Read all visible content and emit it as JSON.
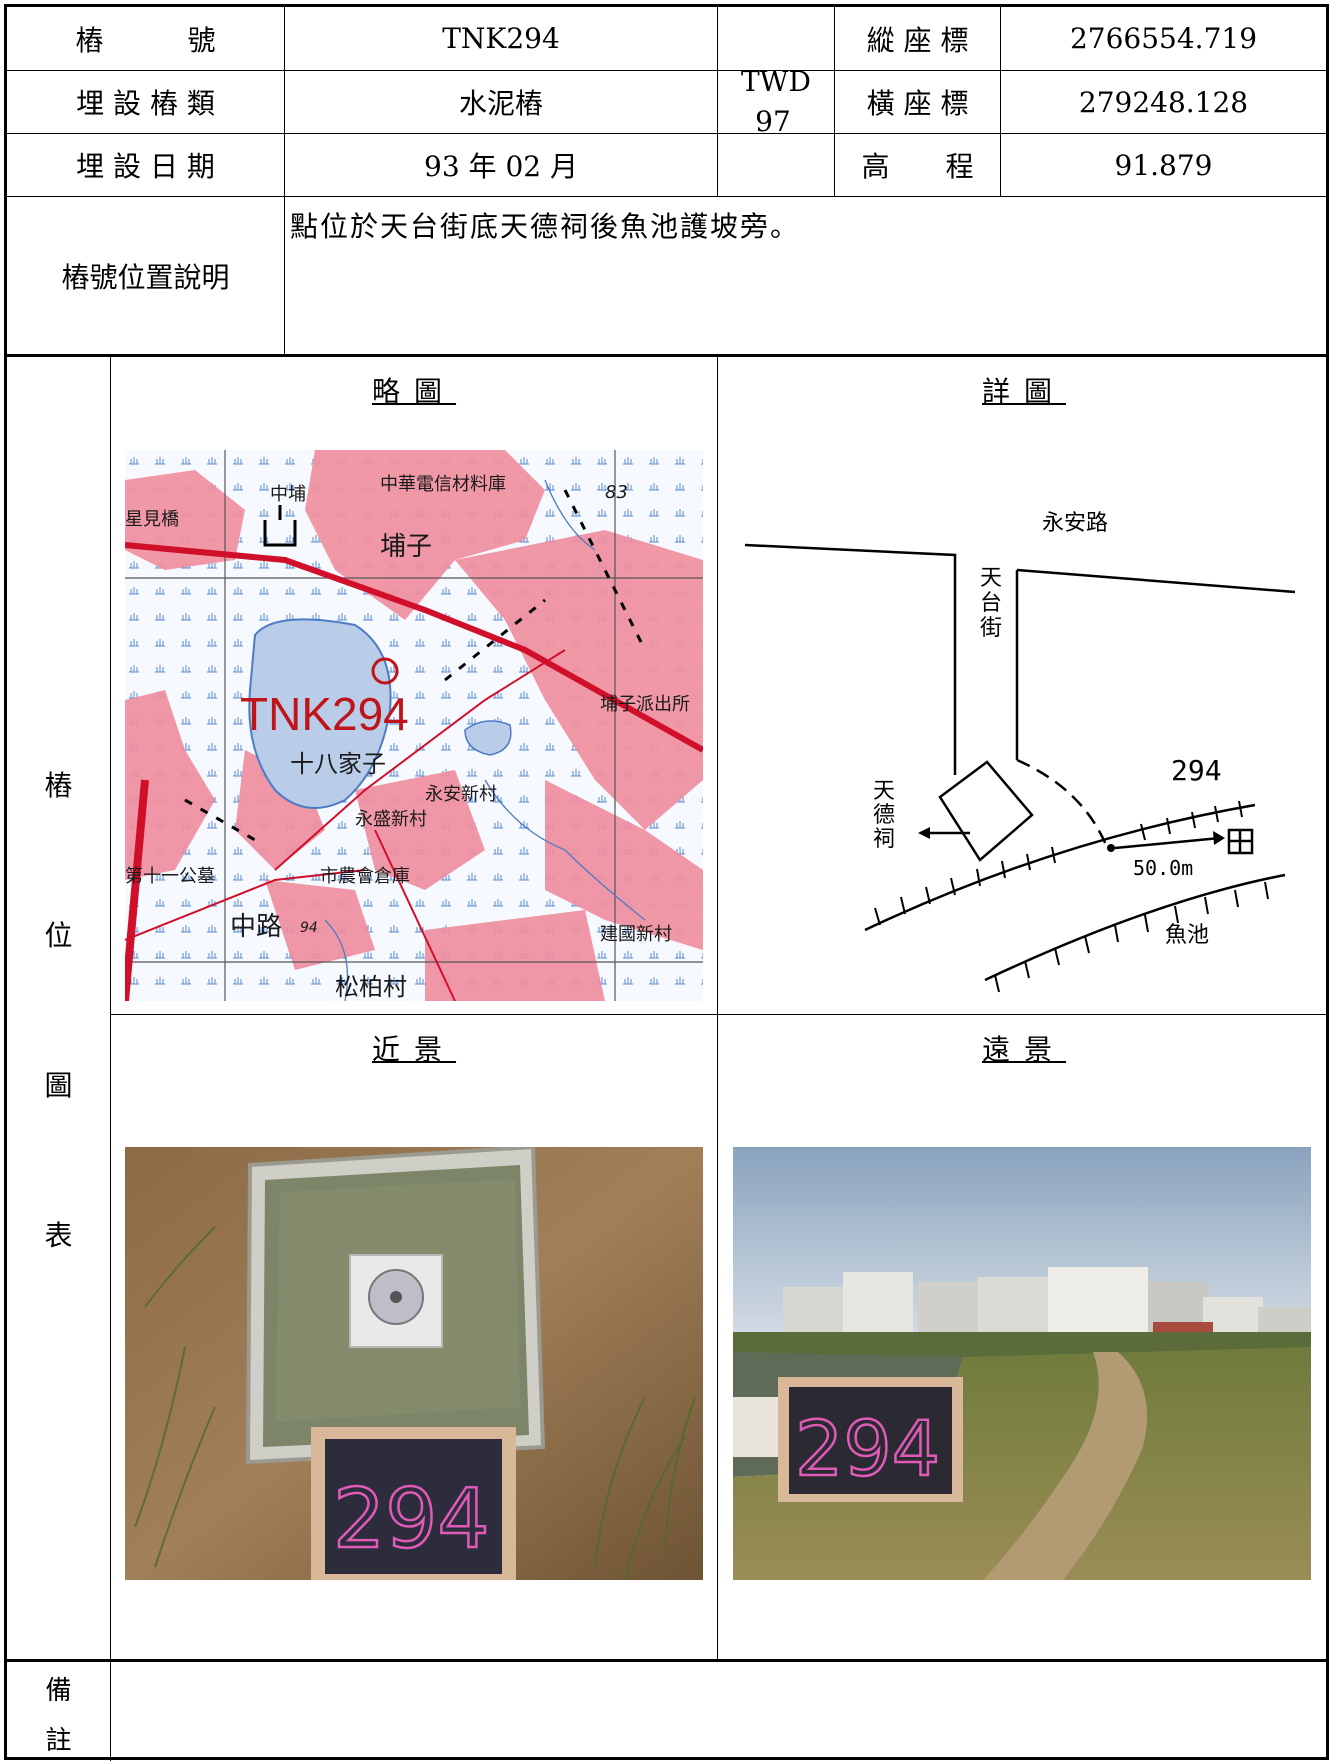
{
  "header": {
    "point_label": "樁　　　號",
    "point_value": "TNK294",
    "type_label": "埋 設 樁 類",
    "type_value": "水泥樁",
    "date_label": "埋 設 日 期",
    "date_value": "93 年 02 月",
    "datum": "TWD 97",
    "n_label": "縱 座 標",
    "n_value": "2766554.719",
    "e_label": "橫 座 標",
    "e_value": "279248.128",
    "h_label": "高　　程",
    "h_value": "91.879"
  },
  "description": {
    "label": "樁號位置說明",
    "text": "點位於天台街底天德祠後魚池護坡旁。"
  },
  "figures": {
    "side_label": [
      "樁",
      "位",
      "圖",
      "表"
    ],
    "sketch_title": "略圖",
    "detail_title": "詳圖",
    "near_title": "近景",
    "far_title": "遠景"
  },
  "sketch_map": {
    "place_labels": [
      "中華電信材料庫",
      "中埔",
      "星見橋",
      "埔子",
      "埔子派出所",
      "十八家子",
      "永安新村",
      "永盛新村",
      "第十一公墓",
      "市農會倉庫",
      "中路",
      "建國新村",
      "松柏村",
      "83",
      "94"
    ],
    "marker_label": "TNK294",
    "colors": {
      "urban": "#f08fa0",
      "water": "#b9cde8",
      "road": "#d0102a",
      "marker": "#c0141a"
    }
  },
  "detail_map": {
    "road_label": "永安路",
    "street_label": [
      "天",
      "台",
      "街"
    ],
    "temple_label": [
      "天",
      "德",
      "祠"
    ],
    "point_number": "294",
    "distance": "50.0m",
    "pond_label": "魚池"
  },
  "photos": {
    "near_board": "294",
    "far_board": "294"
  },
  "remarks": {
    "label": [
      "備",
      "註"
    ],
    "text": ""
  }
}
